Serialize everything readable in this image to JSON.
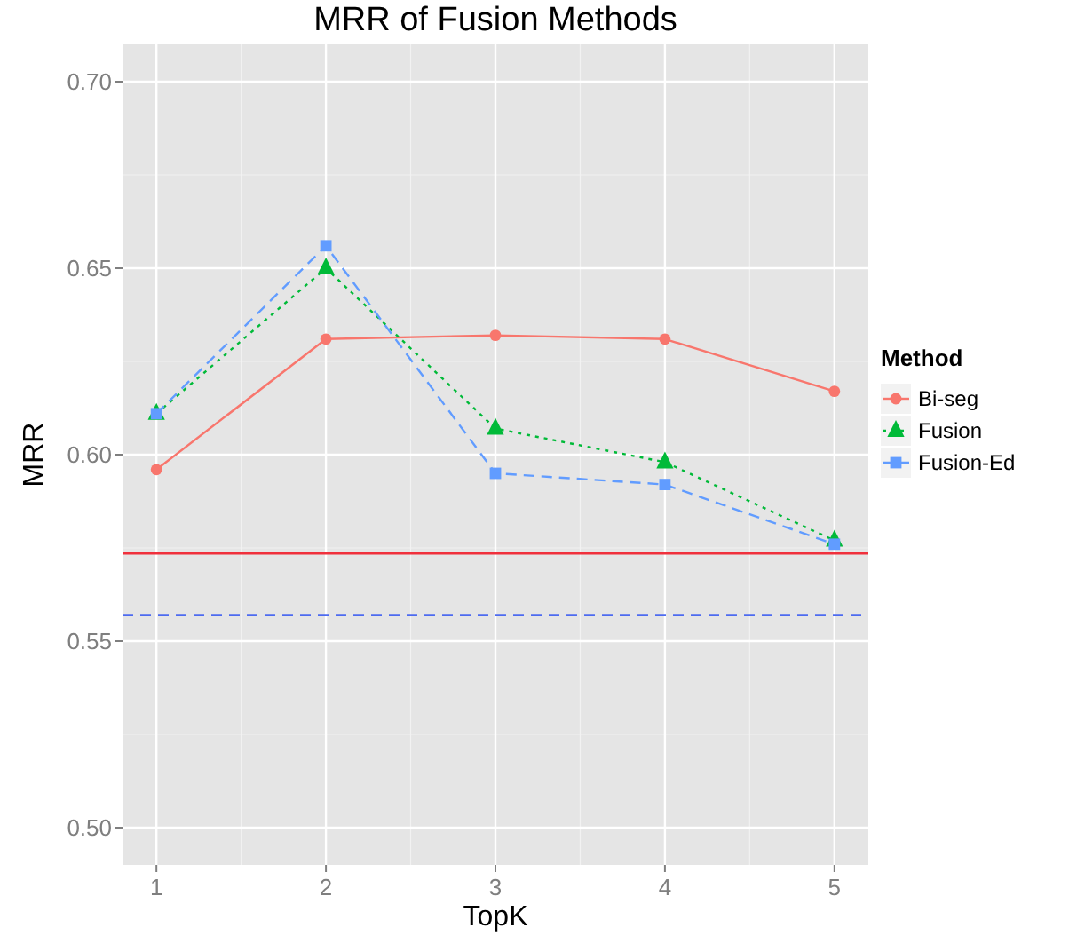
{
  "chart_data": {
    "type": "line",
    "title": "MRR of Fusion Methods",
    "xlabel": "TopK",
    "ylabel": "MRR",
    "legend_title": "Method",
    "legend": "right",
    "grid": true,
    "x": [
      1,
      2,
      3,
      4,
      5
    ],
    "xlim": [
      0.8,
      5.2
    ],
    "xticks": [
      1,
      2,
      3,
      4,
      5
    ],
    "ylim": [
      0.49,
      0.71
    ],
    "yticks": [
      {
        "value": 0.5,
        "label": "0.50"
      },
      {
        "value": 0.55,
        "label": "0.55"
      },
      {
        "value": 0.6,
        "label": "0.60"
      },
      {
        "value": 0.65,
        "label": "0.65"
      },
      {
        "value": 0.7,
        "label": "0.70"
      }
    ],
    "series": [
      {
        "name": "Bi-seg",
        "color": "#f8766d",
        "marker": "circle",
        "line_style": "solid",
        "values": [
          0.596,
          0.631,
          0.632,
          0.631,
          0.617
        ]
      },
      {
        "name": "Fusion",
        "color": "#00ba38",
        "marker": "triangle",
        "line_style": "dotted",
        "values": [
          0.611,
          0.65,
          0.607,
          0.598,
          0.577
        ]
      },
      {
        "name": "Fusion-Ed",
        "color": "#619cff",
        "marker": "square",
        "line_style": "dashed",
        "values": [
          0.611,
          0.656,
          0.595,
          0.592,
          0.576
        ]
      }
    ],
    "ref_lines": [
      {
        "axis": "y",
        "value": 0.5735,
        "color": "#f0303c",
        "line_style": "solid"
      },
      {
        "axis": "y",
        "value": 0.557,
        "color": "#4d6bf0",
        "line_style": "dashed"
      }
    ]
  }
}
